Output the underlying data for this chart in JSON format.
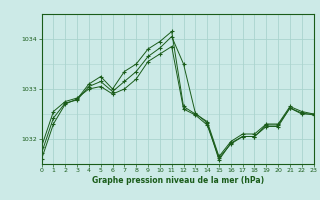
{
  "title": "Graphe pression niveau de la mer (hPa)",
  "bg_color": "#cceae7",
  "line_color": "#1a5c1a",
  "grid_color": "#aad4ce",
  "series": [
    {
      "x": [
        0,
        1,
        2,
        3,
        4,
        5,
        6,
        7,
        8,
        9,
        10,
        11,
        12,
        13,
        14,
        15,
        16,
        17,
        18,
        19,
        20,
        21,
        22,
        23
      ],
      "y": [
        1031.6,
        1032.3,
        1032.7,
        1032.8,
        1033.1,
        1033.25,
        1033.0,
        1033.35,
        1033.5,
        1033.8,
        1033.95,
        1034.15,
        1032.65,
        1032.5,
        1032.35,
        1031.65,
        1031.95,
        1032.1,
        1032.1,
        1032.3,
        1032.3,
        1032.65,
        1032.55,
        1032.5
      ]
    },
    {
      "x": [
        0,
        1,
        2,
        3,
        4,
        5,
        6,
        7,
        8,
        9,
        10,
        11,
        12,
        13,
        14,
        15,
        16,
        17,
        18,
        19,
        20,
        21,
        22,
        23
      ],
      "y": [
        1031.85,
        1032.55,
        1032.75,
        1032.82,
        1033.0,
        1033.05,
        1032.9,
        1033.0,
        1033.2,
        1033.55,
        1033.7,
        1033.85,
        1032.6,
        1032.48,
        1032.28,
        1031.62,
        1031.9,
        1032.05,
        1032.05,
        1032.28,
        1032.28,
        1032.62,
        1032.52,
        1032.48
      ]
    },
    {
      "x": [
        0,
        1,
        2,
        3,
        4,
        5,
        6,
        7,
        8,
        9,
        10,
        11,
        12,
        13,
        14,
        15,
        16,
        17,
        18,
        19,
        20,
        21,
        22,
        23
      ],
      "y": [
        1031.72,
        1032.42,
        1032.72,
        1032.78,
        1033.05,
        1033.15,
        1032.95,
        1033.15,
        1033.35,
        1033.65,
        1033.82,
        1034.05,
        1033.5,
        1032.52,
        1032.32,
        1031.58,
        1031.92,
        1032.05,
        1032.05,
        1032.25,
        1032.25,
        1032.62,
        1032.5,
        1032.5
      ]
    }
  ],
  "yticks": [
    1032,
    1033,
    1034
  ],
  "xticks": [
    0,
    1,
    2,
    3,
    4,
    5,
    6,
    7,
    8,
    9,
    10,
    11,
    12,
    13,
    14,
    15,
    16,
    17,
    18,
    19,
    20,
    21,
    22,
    23
  ],
  "ylim": [
    1031.5,
    1034.5
  ],
  "xlim": [
    0,
    23
  ]
}
